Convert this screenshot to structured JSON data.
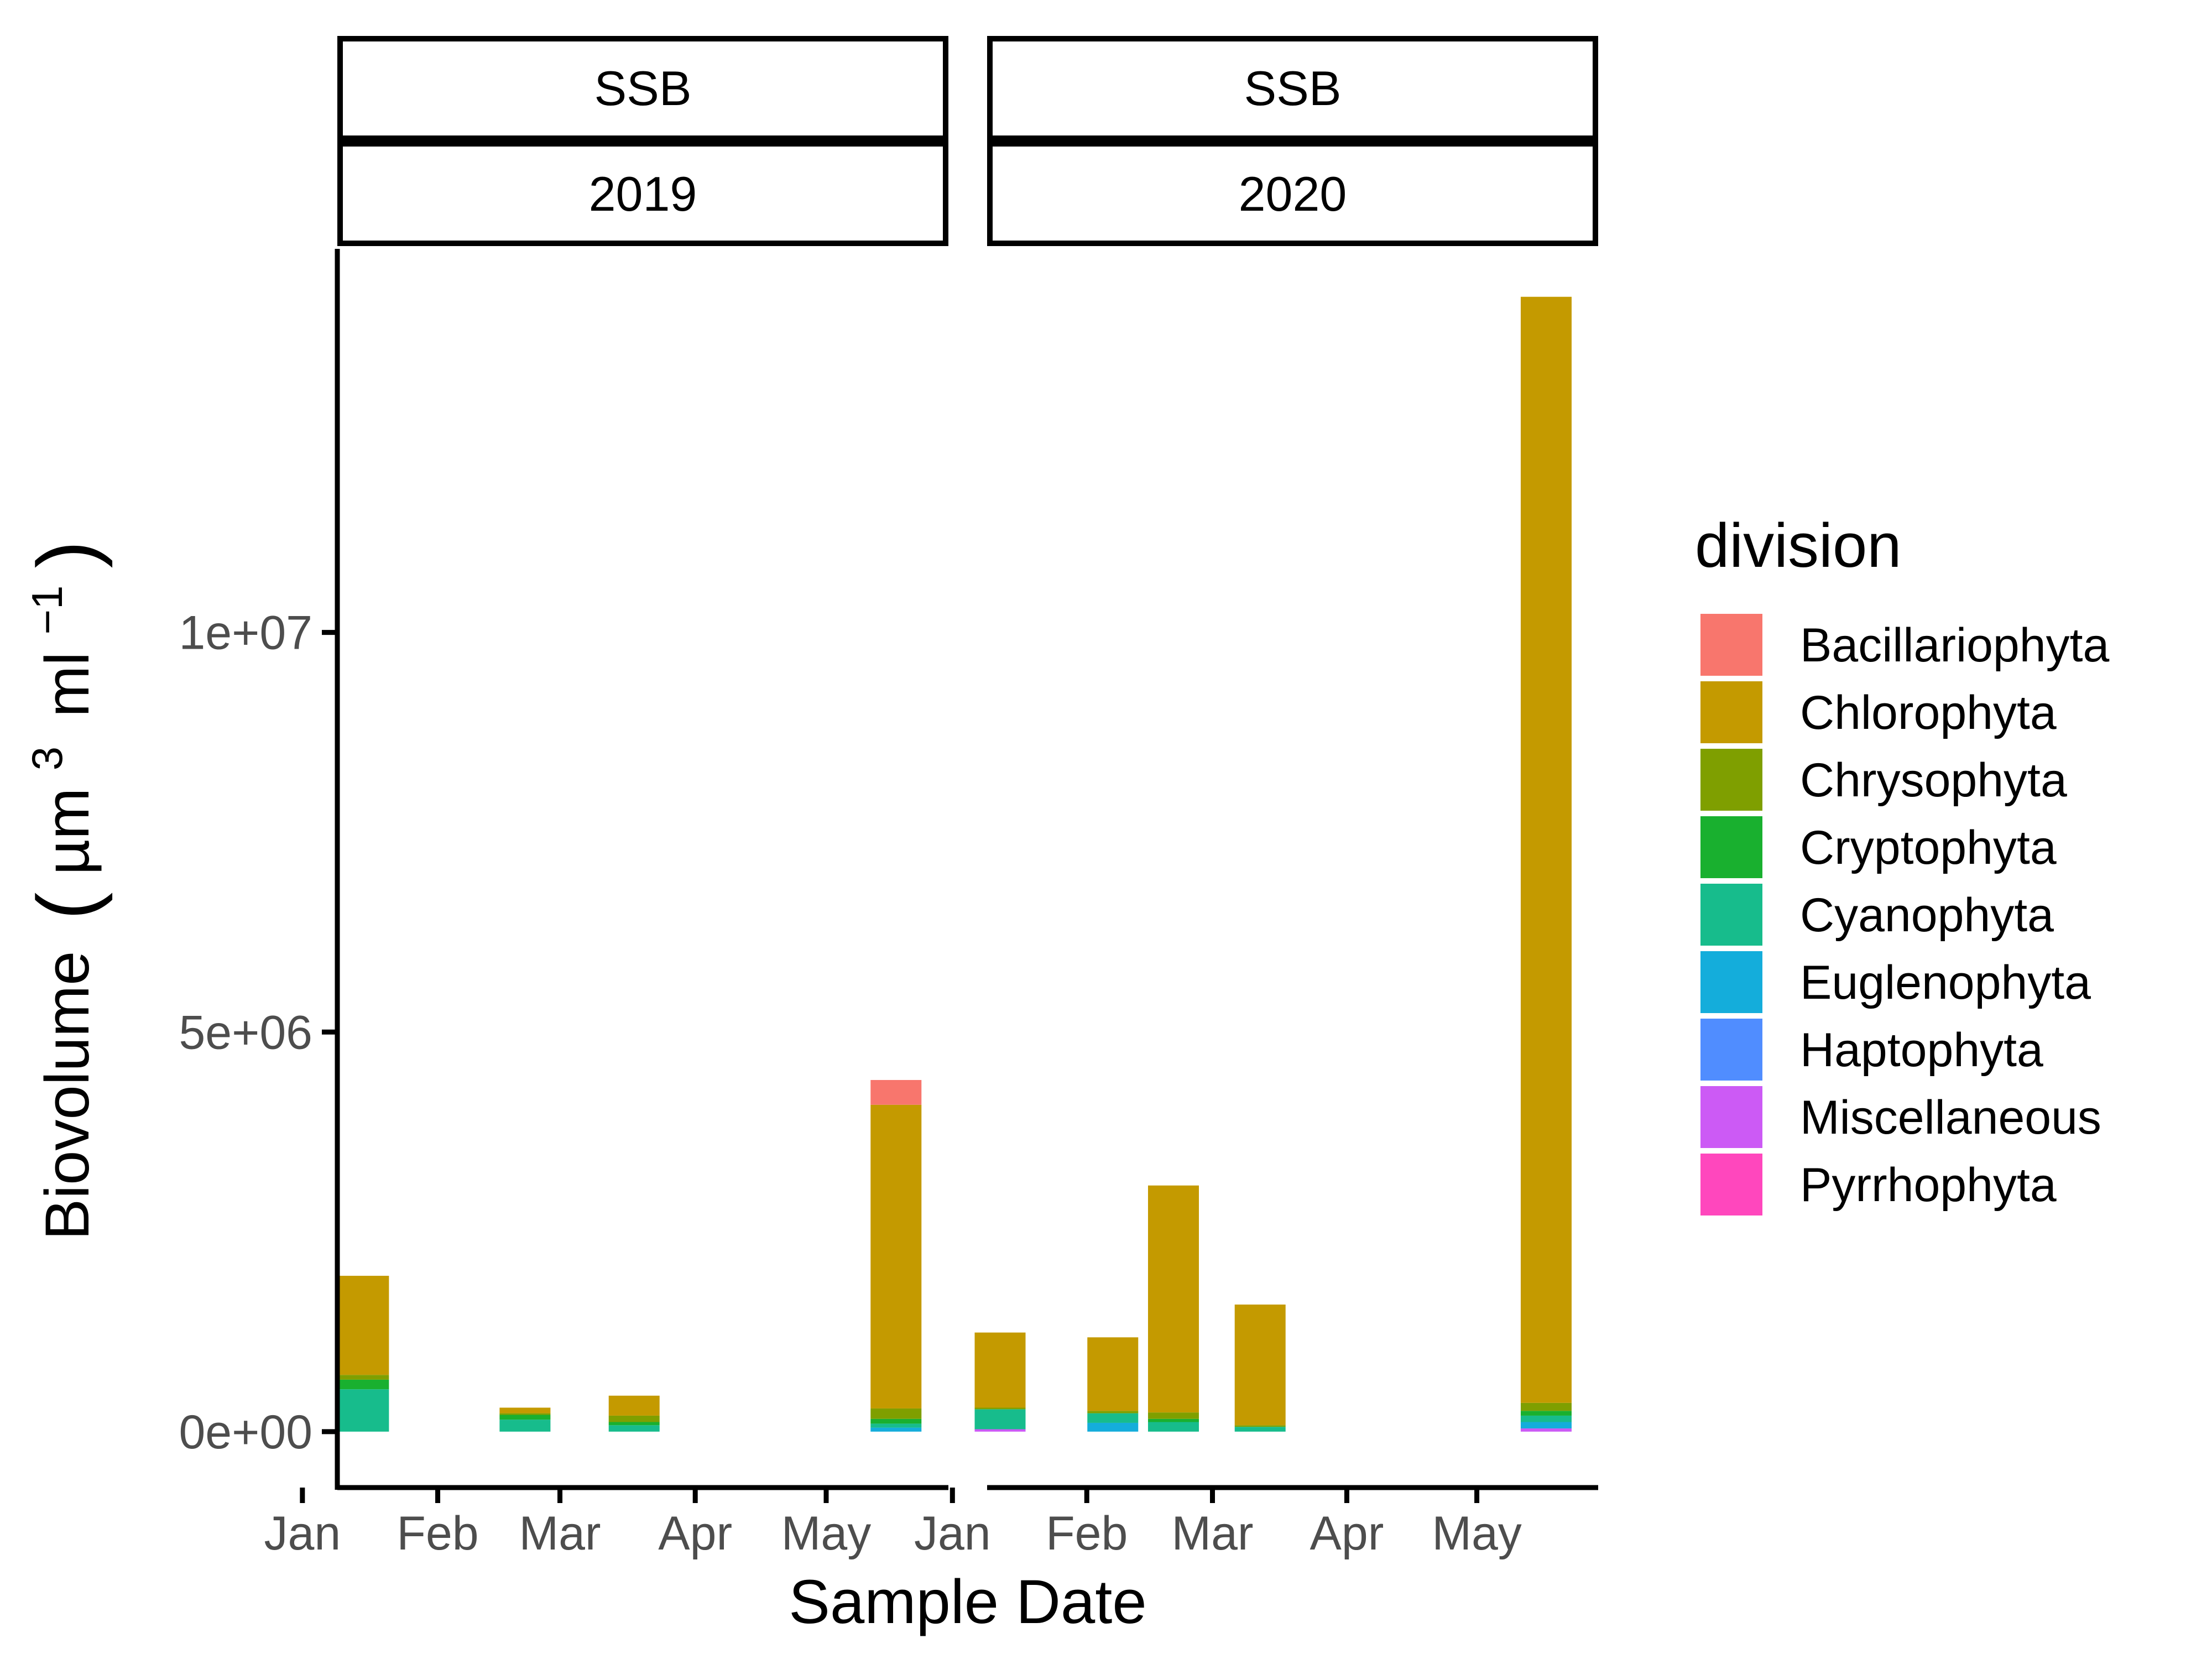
{
  "chart_data": {
    "type": "bar",
    "stacked": true,
    "facet_rows": [
      "SSB"
    ],
    "facets": [
      {
        "site": "SSB",
        "year": "2019",
        "x_ticks": [
          "Jan",
          "Feb",
          "Mar",
          "Apr",
          "May"
        ],
        "samples": [
          {
            "date": "2019-01-15",
            "values": {
              "Cyanophyta": 530000,
              "Cryptophyta": 120000,
              "Chrysophyta": 60000,
              "Chlorophyta": 1240000
            }
          },
          {
            "date": "2019-02-21",
            "values": {
              "Cyanophyta": 150000,
              "Cryptophyta": 60000,
              "Chrysophyta": 20000,
              "Chlorophyta": 70000
            }
          },
          {
            "date": "2019-03-18",
            "values": {
              "Cyanophyta": 80000,
              "Cryptophyta": 40000,
              "Chrysophyta": 80000,
              "Chlorophyta": 250000
            }
          },
          {
            "date": "2019-05-17",
            "values": {
              "Euglenophyta": 50000,
              "Cyanophyta": 50000,
              "Cryptophyta": 60000,
              "Chrysophyta": 130000,
              "Chlorophyta": 3800000,
              "Bacillariophyta": 310000
            }
          }
        ]
      },
      {
        "site": "SSB",
        "year": "2020",
        "x_ticks": [
          "Jan",
          "Feb",
          "Mar",
          "Apr",
          "May"
        ],
        "samples": [
          {
            "date": "2020-01-12",
            "values": {
              "Miscellaneous": 30000,
              "Cyanophyta": 250000,
              "Chrysophyta": 20000,
              "Chlorophyta": 940000
            }
          },
          {
            "date": "2020-02-07",
            "values": {
              "Euglenophyta": 110000,
              "Cyanophyta": 120000,
              "Chrysophyta": 30000,
              "Chlorophyta": 920000
            }
          },
          {
            "date": "2020-02-21",
            "values": {
              "Cyanophyta": 120000,
              "Cryptophyta": 40000,
              "Chrysophyta": 80000,
              "Chlorophyta": 2840000
            }
          },
          {
            "date": "2020-03-12",
            "values": {
              "Cyanophyta": 60000,
              "Chrysophyta": 20000,
              "Chlorophyta": 1510000
            }
          },
          {
            "date": "2020-05-17",
            "values": {
              "Miscellaneous": 40000,
              "Euglenophyta": 80000,
              "Cyanophyta": 80000,
              "Cryptophyta": 60000,
              "Chrysophyta": 100000,
              "Chlorophyta": 13840000
            }
          }
        ]
      }
    ],
    "series": [
      {
        "name": "Bacillariophyta",
        "color": "#F8766D"
      },
      {
        "name": "Chlorophyta",
        "color": "#C49A00"
      },
      {
        "name": "Chrysophyta",
        "color": "#7F9F00"
      },
      {
        "name": "Cryptophyta",
        "color": "#19B02F"
      },
      {
        "name": "Cyanophyta",
        "color": "#17BC8C"
      },
      {
        "name": "Euglenophyta",
        "color": "#14ADDB"
      },
      {
        "name": "Haptophyta",
        "color": "#508DFF"
      },
      {
        "name": "Miscellaneous",
        "color": "#CC5AF5"
      },
      {
        "name": "Pyrrhophyta",
        "color": "#FF47BD"
      }
    ],
    "stack_order_bottom_to_top": [
      "Pyrrhophyta",
      "Miscellaneous",
      "Haptophyta",
      "Euglenophyta",
      "Cyanophyta",
      "Cryptophyta",
      "Chrysophyta",
      "Chlorophyta",
      "Bacillariophyta"
    ],
    "xlabel": "Sample Date",
    "ylabel_main": "Biovolume",
    "ylabel_unit": {
      "base1": "µm",
      "exp1": "3",
      "base2": "ml",
      "exp2": "−1"
    },
    "ylim": [
      -700000,
      14800000
    ],
    "yticks": [
      0,
      5000000,
      10000000
    ],
    "ytick_labels": [
      "0e+00",
      "5e+06",
      "1e+07"
    ],
    "x_range": [
      "01-09",
      "05-29"
    ],
    "legend_title": "division",
    "legend_position": "right",
    "grid": false
  }
}
